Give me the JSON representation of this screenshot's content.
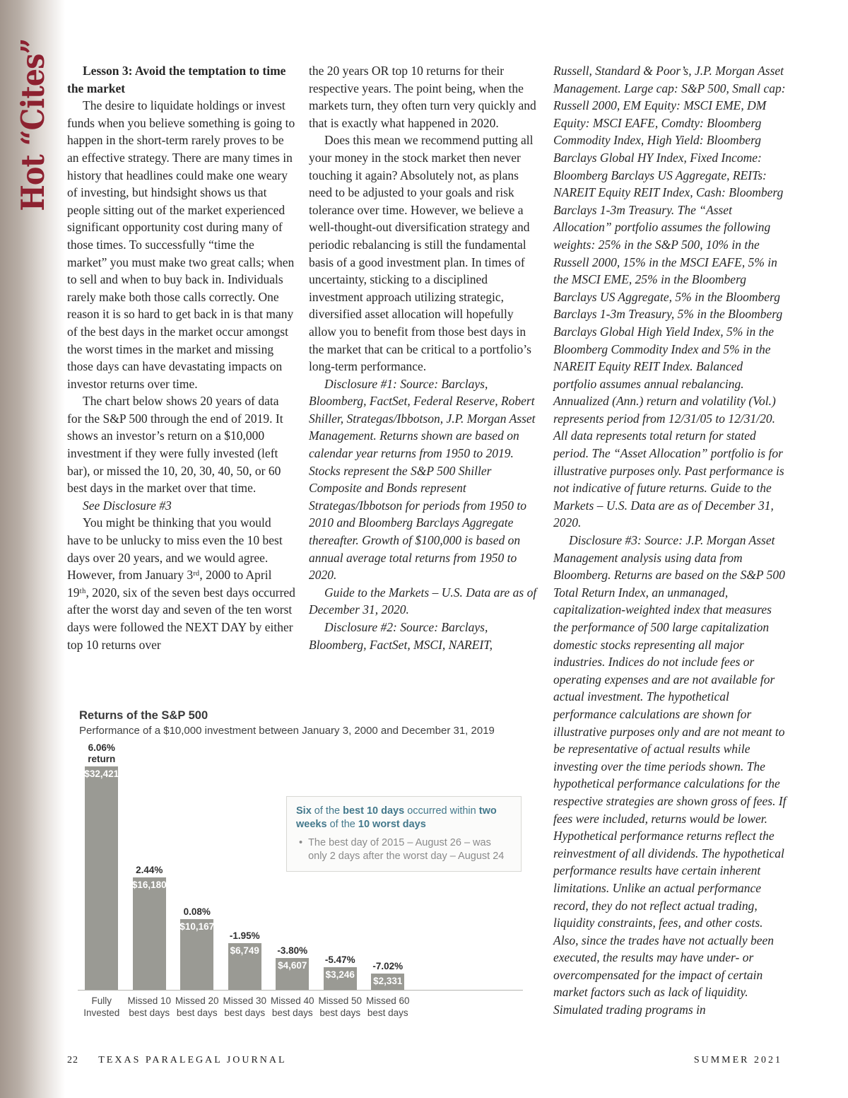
{
  "page": {
    "sidebar_title": "Hot “Cites”",
    "footer": {
      "page_number": "22",
      "journal": "TEXAS PARALEGAL JOURNAL",
      "issue": "SUMMER 2021"
    },
    "colors": {
      "accent_red": "#8d2130",
      "edge_taupe": "#a3978e",
      "bar_gray": "#9a9a94",
      "callout_teal": "#44798c"
    }
  },
  "columns": {
    "col1": [
      {
        "bold": true,
        "text": "Lesson 3: Avoid the temptation to time the market"
      },
      {
        "text": "The desire to liquidate holdings or invest funds when you believe something is going to happen in the short-term rarely proves to be an effective strategy. There are many times in history that headlines could make one weary of investing, but hindsight shows us that people sitting out of the market experienced significant opportunity cost during many of those times.  To successfully “time the market” you must make two great calls; when to sell and when to buy back in. Individuals rarely make both those calls correctly. One reason it is so hard to get back in is that many of the best days in the market occur amongst the worst times in the market and missing those days can have devastating impacts on investor returns over time."
      },
      {
        "text": "The chart below shows 20 years of data for the S&P 500 through the end of 2019. It shows an investor’s return on a $10,000 investment if they were fully invested (left bar), or missed the 10, 20, 30, 40, 50, or 60 best days in the market over that time."
      },
      {
        "italic": true,
        "text": "See Disclosure #3"
      },
      {
        "text": "You might be thinking that you would have to be unlucky to miss even the 10 best days over 20 years, and we would agree. However, from January 3ʳᵈ, 2000 to April 19ᵗʰ, 2020, six of the seven best days occurred after the worst day and seven of the ten worst days were followed the NEXT DAY by either top 10 returns over"
      }
    ],
    "col2": [
      {
        "noindent": true,
        "text": "the 20 years OR top 10 returns for their respective years. The point being, when the markets turn, they often turn very quickly and that is exactly what happened in 2020."
      },
      {
        "text": "Does this mean we recommend putting all your money in the stock market then never touching it again? Absolutely not, as plans need to be adjusted to your goals and risk tolerance over time. However, we believe a well-thought-out diversification strategy and periodic rebalancing is still the fundamental basis of a good investment plan. In times of uncertainty, sticking to a disciplined investment approach utilizing strategic, diversified asset allocation will hopefully allow you to benefit from those best days in the market that can be critical to a portfolio’s long-term performance."
      },
      {
        "italic": true,
        "text": "Disclosure #1: Source: Barclays, Bloomberg, FactSet, Federal Reserve, Robert Shiller, Strategas/Ibbotson, J.P. Morgan Asset Management. Returns shown are based on calendar year returns from 1950 to 2019. Stocks represent the S&P 500 Shiller Composite and Bonds represent Strategas/Ibbotson for periods from 1950 to 2010 and Bloomberg Barclays Aggregate thereafter. Growth of $100,000 is based on annual average total returns from 1950 to 2020."
      },
      {
        "italic": true,
        "text": "Guide to the Markets – U.S. Data are as of December 31, 2020."
      },
      {
        "italic": true,
        "text": "Disclosure #2: Source: Barclays, Bloomberg, FactSet, MSCI, NAREIT,"
      }
    ],
    "col3": [
      {
        "italic": true,
        "noindent": true,
        "text": "Russell, Standard & Poor’s, J.P. Morgan Asset Management. Large cap: S&P 500, Small cap: Russell 2000, EM Equity: MSCI EME, DM Equity: MSCI EAFE, Comdty: Bloomberg Commodity Index, High Yield: Bloomberg Barclays Global HY Index, Fixed Income: Bloomberg Barclays US Aggregate, REITs: NAREIT Equity REIT Index, Cash: Bloomberg Barclays 1-3m Treasury. The “Asset Allocation” portfolio assumes the following weights: 25% in the S&P 500, 10% in the Russell 2000, 15% in the MSCI EAFE, 5% in the MSCI EME, 25% in the Bloomberg Barclays US Aggregate, 5% in the Bloomberg Barclays 1-3m Treasury, 5% in the Bloomberg Barclays Global High Yield Index, 5% in the Bloomberg Commodity Index and 5% in the NAREIT Equity REIT Index. Balanced portfolio assumes annual rebalancing. Annualized (Ann.) return and volatility (Vol.) represents period from 12/31/05 to 12/31/20. All data represents total return for stated period. The “Asset Allocation” portfolio is for illustrative purposes only. Past performance is not indicative of future returns. Guide to the Markets – U.S. Data are as of December 31, 2020."
      },
      {
        "italic": true,
        "text": "Disclosure #3: Source: J.P. Morgan Asset Management analysis using data from Bloomberg. Returns are based on the S&P 500 Total Return Index, an unmanaged, capitalization-weighted index that measures the performance of 500 large capitalization domestic stocks representing all major industries. Indices do not include fees or operating expenses and are not available for actual investment. The hypothetical performance calculations are shown for illustrative purposes only and are not meant to be representative of actual results while investing over the time periods shown. The hypothetical performance calculations for the respective strategies are shown gross of fees. If fees were included, returns would be lower. Hypothetical performance returns reflect the reinvestment of all dividends. The hypothetical performance results have certain inherent limitations.  Unlike an actual performance record, they do not reflect actual trading, liquidity constraints, fees, and other costs. Also, since the trades have not actually been executed, the results may have under- or overcompensated for the impact of certain market factors such as lack of liquidity. Simulated trading programs in"
      }
    ]
  },
  "chart_data": {
    "type": "bar",
    "title": "Returns of the S&P 500",
    "subtitle": "Performance of a $10,000 investment between January 3, 2000 and December 31, 2019",
    "categories": [
      "Fully Invested",
      "Missed 10\nbest days",
      "Missed 20\nbest days",
      "Missed 30\nbest days",
      "Missed 40\nbest days",
      "Missed 50\nbest days",
      "Missed 60\nbest days"
    ],
    "values": [
      32421,
      16180,
      10167,
      6749,
      4607,
      3246,
      2331
    ],
    "value_labels": [
      "$32,421",
      "$16,180",
      "$10,167",
      "$6,749",
      "$4,607",
      "$3,246",
      "$2,331"
    ],
    "pct_labels": [
      "6.06%\nreturn",
      "2.44%",
      "0.08%",
      "-1.95%",
      "-3.80%",
      "-5.47%",
      "-7.02%"
    ],
    "annual_returns_pct": [
      6.06,
      2.44,
      0.08,
      -1.95,
      -3.8,
      -5.47,
      -7.02
    ],
    "bar_color": "#9a9a94",
    "ylim": [
      0,
      35000
    ],
    "grid": false,
    "legend": "none",
    "callout": {
      "heading": "Six of the best 10 days occurred within two weeks of the 10 worst days",
      "heading_parts": [
        {
          "text": "Six",
          "bold": true
        },
        {
          "text": " of the ",
          "bold": false
        },
        {
          "text": "best 10 days",
          "bold": true
        },
        {
          "text": " occurred within ",
          "bold": false
        },
        {
          "text": "two weeks",
          "bold": true
        },
        {
          "text": " of the ",
          "bold": false
        },
        {
          "text": "10 worst days",
          "bold": true
        }
      ],
      "bullet_marker": "•",
      "bullet": "The best day of 2015 – August 26 – was only 2 days after the worst day – August 24"
    }
  }
}
